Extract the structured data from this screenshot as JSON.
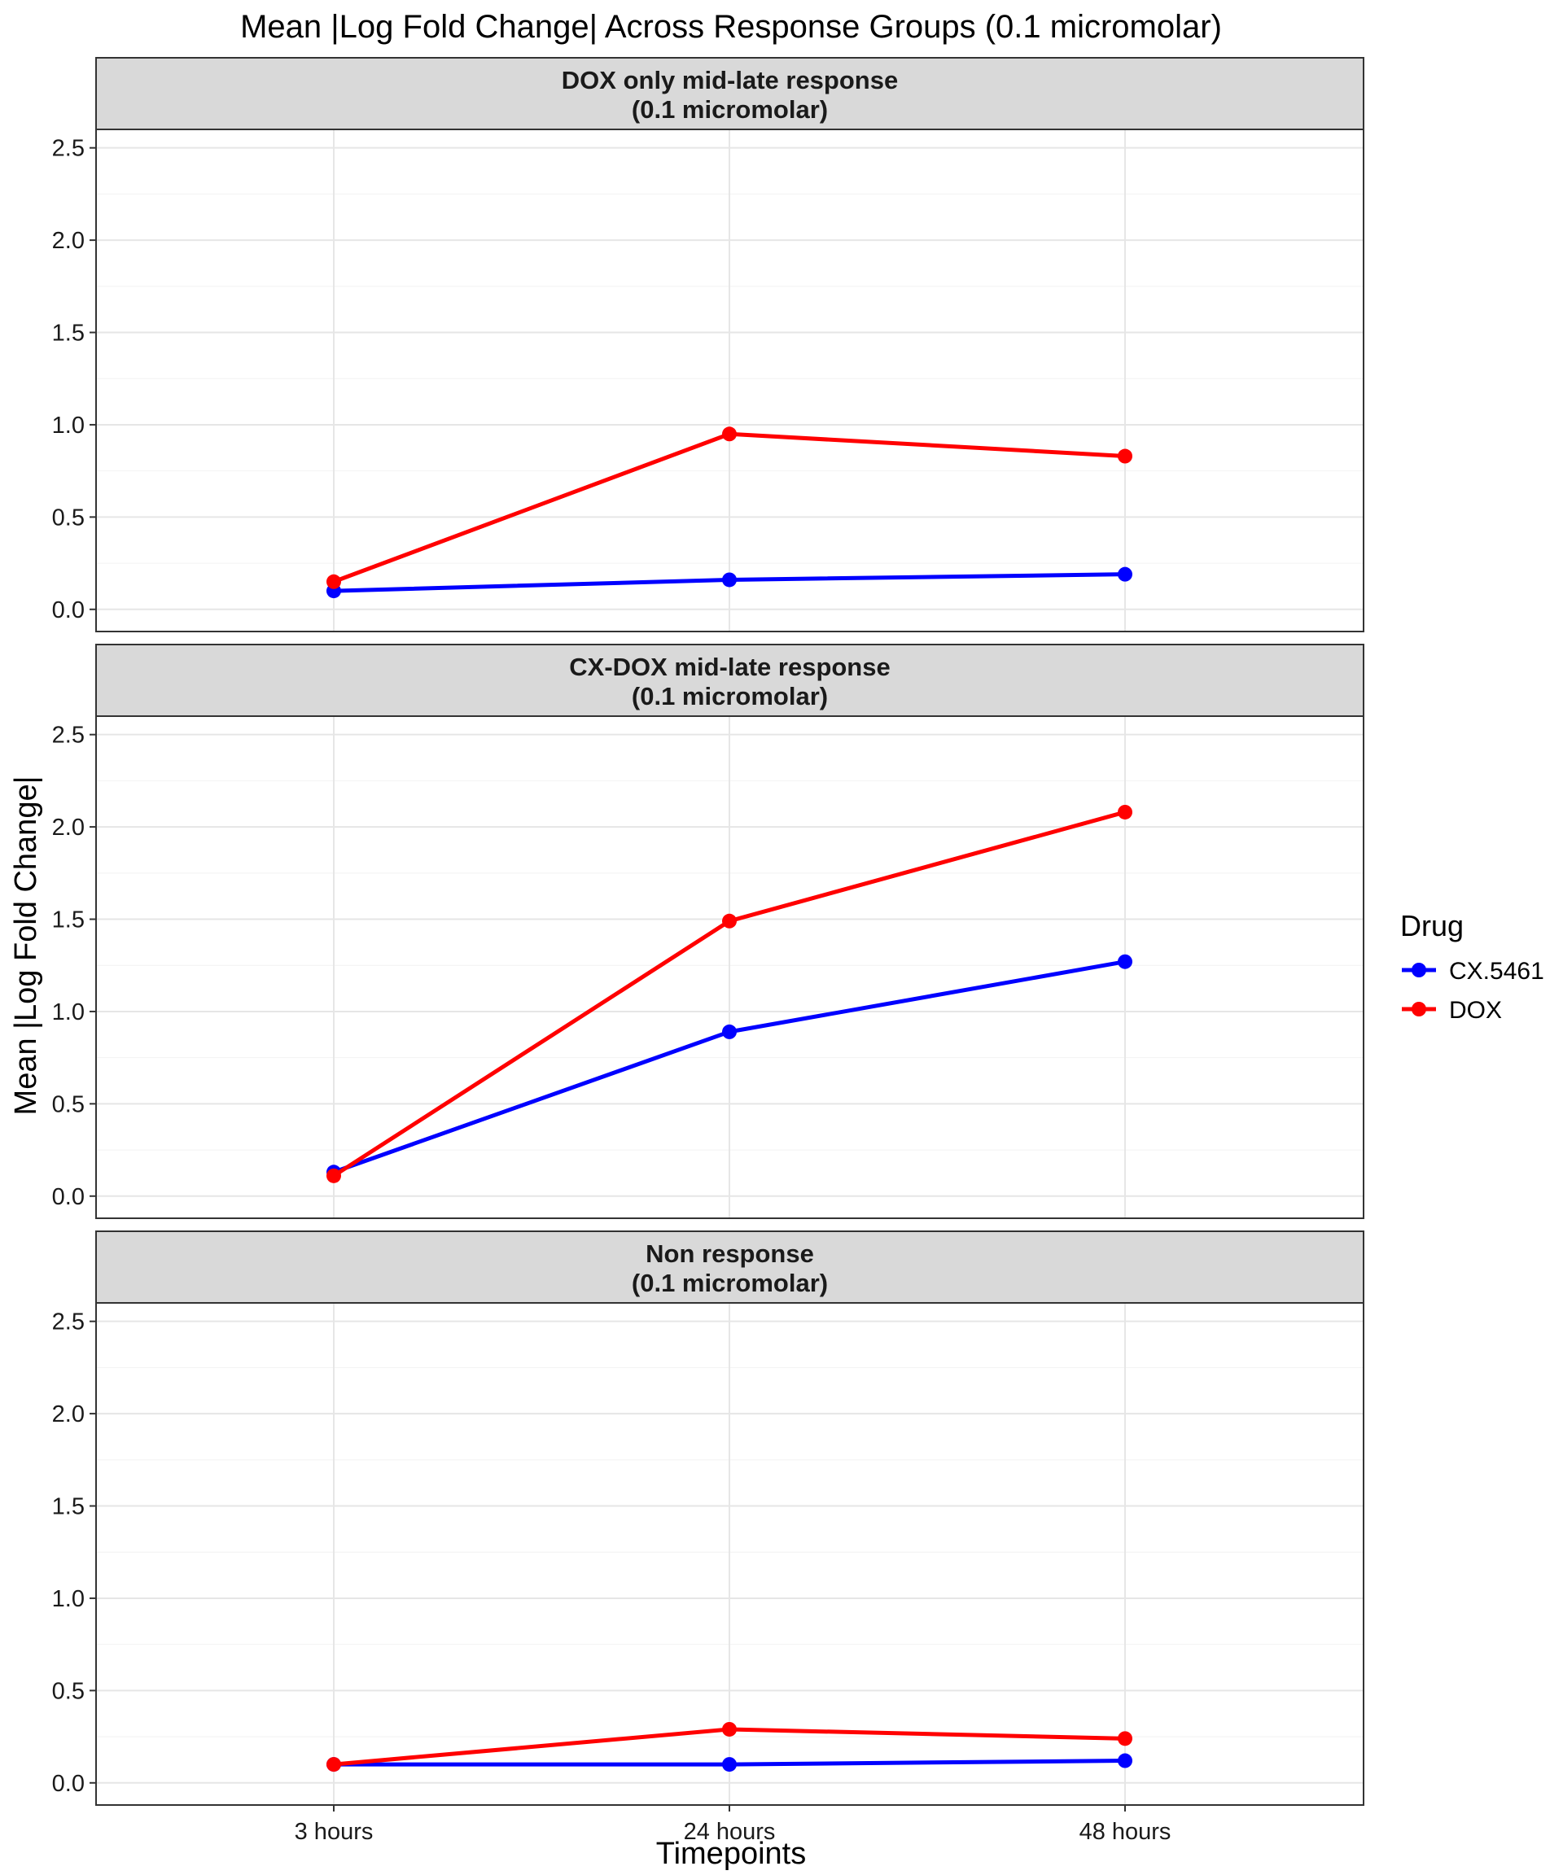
{
  "figure": {
    "title": "Mean |Log Fold Change| Across Response Groups (0.1 micromolar)",
    "xlabel": "Timepoints",
    "ylabel": "Mean |Log Fold Change|",
    "legend": {
      "title": "Drug",
      "position": "right",
      "entries": [
        {
          "name": "CX.5461",
          "color": "#0000FF"
        },
        {
          "name": "DOX",
          "color": "#FF0000"
        }
      ]
    }
  },
  "chart_data": [
    {
      "type": "line",
      "panel_title_line1": "DOX only mid-late response",
      "panel_title_line2": "(0.1 micromolar)",
      "categories": [
        "3 hours",
        "24 hours",
        "48 hours"
      ],
      "ylim": [
        -0.12,
        2.6
      ],
      "yticks": [
        0.0,
        0.5,
        1.0,
        1.5,
        2.0,
        2.5
      ],
      "ytick_labels": [
        "0.0",
        "0.5",
        "1.0",
        "1.5",
        "2.0",
        "2.5"
      ],
      "grid": true,
      "series": [
        {
          "name": "CX.5461",
          "color": "#0000FF",
          "values": [
            0.1,
            0.16,
            0.19
          ]
        },
        {
          "name": "DOX",
          "color": "#FF0000",
          "values": [
            0.15,
            0.95,
            0.83
          ]
        }
      ]
    },
    {
      "type": "line",
      "panel_title_line1": "CX-DOX mid-late response",
      "panel_title_line2": "(0.1 micromolar)",
      "categories": [
        "3 hours",
        "24 hours",
        "48 hours"
      ],
      "ylim": [
        -0.12,
        2.6
      ],
      "yticks": [
        0.0,
        0.5,
        1.0,
        1.5,
        2.0,
        2.5
      ],
      "ytick_labels": [
        "0.0",
        "0.5",
        "1.0",
        "1.5",
        "2.0",
        "2.5"
      ],
      "grid": true,
      "series": [
        {
          "name": "CX.5461",
          "color": "#0000FF",
          "values": [
            0.13,
            0.89,
            1.27
          ]
        },
        {
          "name": "DOX",
          "color": "#FF0000",
          "values": [
            0.11,
            1.49,
            2.08
          ]
        }
      ]
    },
    {
      "type": "line",
      "panel_title_line1": "Non response",
      "panel_title_line2": "(0.1 micromolar)",
      "categories": [
        "3 hours",
        "24 hours",
        "48 hours"
      ],
      "ylim": [
        -0.12,
        2.6
      ],
      "yticks": [
        0.0,
        0.5,
        1.0,
        1.5,
        2.0,
        2.5
      ],
      "ytick_labels": [
        "0.0",
        "0.5",
        "1.0",
        "1.5",
        "2.0",
        "2.5"
      ],
      "grid": true,
      "series": [
        {
          "name": "CX.5461",
          "color": "#0000FF",
          "values": [
            0.1,
            0.1,
            0.12
          ]
        },
        {
          "name": "DOX",
          "color": "#FF0000",
          "values": [
            0.1,
            0.29,
            0.24
          ]
        }
      ]
    }
  ]
}
